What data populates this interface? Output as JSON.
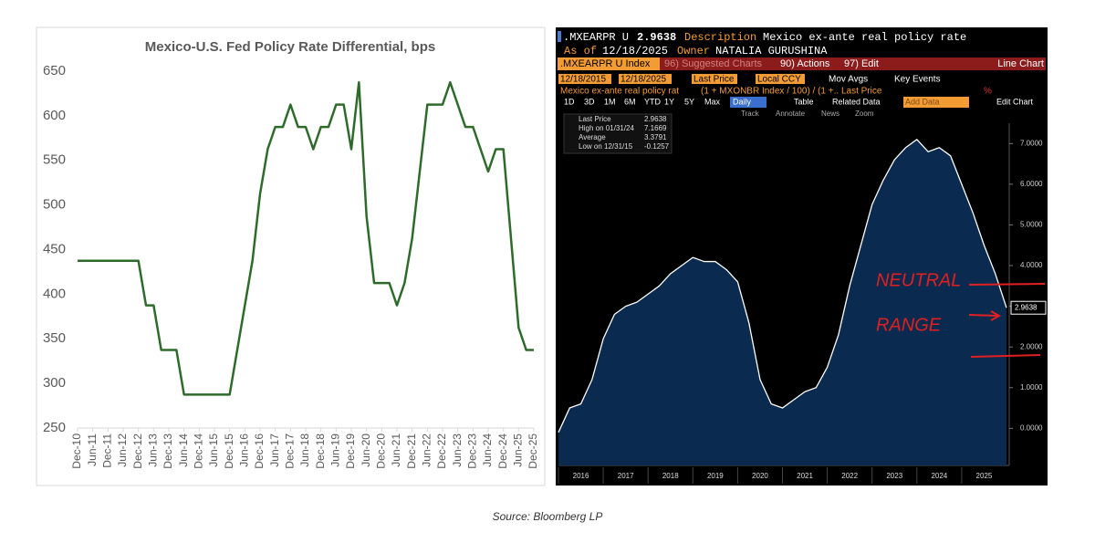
{
  "chart_data": [
    {
      "type": "line",
      "title": "Mexico-U.S. Fed Policy Rate Differential, bps",
      "categories": [
        "Dec-10",
        null,
        "Jun-11",
        null,
        "Dec-11",
        null,
        "Jun-12",
        null,
        "Dec-12",
        null,
        "Jun-13",
        null,
        "Dec-13",
        null,
        "Jun-14",
        null,
        "Dec-14",
        null,
        "Jun-15",
        null,
        "Dec-15",
        null,
        "Jun-16",
        null,
        "Dec-16",
        null,
        "Jun-17",
        null,
        "Dec-17",
        null,
        "Jun-18",
        null,
        "Dec-18",
        null,
        "Jun-19",
        null,
        "Dec-19",
        null,
        "Jun-20",
        null,
        "Dec-20",
        null,
        "Jun-21",
        null,
        "Dec-21",
        null,
        "Jun-22",
        null,
        "Dec-22",
        null,
        "Jun-23",
        null,
        "Dec-23",
        null,
        "Jun-24",
        null,
        "Dec-24",
        null,
        "Jun-25",
        null,
        "Dec-25"
      ],
      "series": [
        {
          "name": "Differential",
          "color": "#2e6b2a",
          "values": [
            437.5,
            437.5,
            437.5,
            437.5,
            437.5,
            437.5,
            437.5,
            437.5,
            437.5,
            387.5,
            387.5,
            337.5,
            337.5,
            337.5,
            287.5,
            287.5,
            287.5,
            287.5,
            287.5,
            287.5,
            287.5,
            337.5,
            387.5,
            437.5,
            512.5,
            562.5,
            587.5,
            587.5,
            612.5,
            587.5,
            587.5,
            562.5,
            587.5,
            587.5,
            612.5,
            612.5,
            562.5,
            637.5,
            487.5,
            412.5,
            412.5,
            412.5,
            387.5,
            412.5,
            462.5,
            537.5,
            612.5,
            612.5,
            612.5,
            637.5,
            612.5,
            587.5,
            587.5,
            562.5,
            537.5,
            562.5,
            562.5,
            462.5,
            362.5,
            337.5,
            337.5
          ]
        }
      ],
      "ylim": [
        250,
        650
      ],
      "yticks": [
        250,
        300,
        350,
        400,
        450,
        500,
        550,
        600,
        650
      ],
      "grid": false
    },
    {
      "type": "area",
      "categories": [
        null,
        null,
        "2016",
        null,
        null,
        null,
        "2017",
        null,
        null,
        null,
        "2018",
        null,
        null,
        null,
        "2019",
        null,
        null,
        null,
        "2020",
        null,
        null,
        null,
        "2021",
        null,
        null,
        null,
        "2022",
        null,
        null,
        null,
        "2023",
        null,
        null,
        null,
        "2024",
        null,
        null,
        null,
        "2025",
        null,
        null
      ],
      "series": [
        {
          "name": "Last Price",
          "color": "#ffffff",
          "values": [
            -0.1,
            0.5,
            0.6,
            1.2,
            2.2,
            2.8,
            3.0,
            3.1,
            3.3,
            3.5,
            3.8,
            4.0,
            4.2,
            4.1,
            4.1,
            3.9,
            3.6,
            2.6,
            1.2,
            0.6,
            0.5,
            0.7,
            0.9,
            1.0,
            1.5,
            2.3,
            3.5,
            4.5,
            5.5,
            6.1,
            6.6,
            6.9,
            7.1,
            6.8,
            6.9,
            6.7,
            6.0,
            5.3,
            4.5,
            3.8,
            2.9638
          ]
        }
      ],
      "fill": "#0b2a4f",
      "ylim": [
        -0.8,
        7.5
      ],
      "yticks": [
        {
          "value": 0,
          "label": "0.0000"
        },
        {
          "value": 1,
          "label": "1.0000"
        },
        {
          "value": 2,
          "label": "2.0000"
        },
        {
          "value": 3,
          "label": "3.0000"
        },
        {
          "value": 4,
          "label": "4.0000"
        },
        {
          "value": 5,
          "label": "5.0000"
        },
        {
          "value": 6,
          "label": "6.0000"
        },
        {
          "value": 7,
          "label": "7.0000"
        }
      ],
      "last_value": {
        "value": 2.9638,
        "label": "2.9638"
      },
      "annotations": [
        "NEUTRAL",
        "RANGE"
      ]
    }
  ],
  "terminal": {
    "ticker": ".MXEARPR U",
    "price": "2.9638",
    "description_label": "Description",
    "description": "Mexico ex-ante real policy rate",
    "as_of_label": "As of",
    "as_of": "12/18/2025",
    "owner_label": "Owner",
    "owner": "NATALIA GURUSHINA",
    "security": ".MXEARPR U Index",
    "menu": [
      "96) Suggested Charts",
      "90) Actions",
      "97) Edit"
    ],
    "chart_kind": "Line Chart",
    "start_date": "12/18/2015",
    "end_date": "12/18/2025",
    "field": "Last Price",
    "currency": "Local CCY",
    "options": [
      "Mov Avgs",
      "Key Events"
    ],
    "series_name": "Mexico ex-ante real policy rat",
    "formula": "(1 + MXONBR Index / 100) / (1 +.. Last Price",
    "unit": "%",
    "periods": [
      "1D",
      "3D",
      "1M",
      "6M",
      "YTD",
      "1Y",
      "5Y",
      "Max"
    ],
    "frequency": "Daily",
    "buttons": [
      "Table",
      "Related Data",
      "Add Data",
      "Edit Chart"
    ],
    "tools": [
      "Track",
      "Annotate",
      "News",
      "Zoom"
    ],
    "legend": [
      [
        "Last Price",
        "2.9638"
      ],
      [
        "High on 01/31/24",
        "7.1669"
      ],
      [
        "Average",
        "3.3791"
      ],
      [
        "Low on 12/31/15",
        "-0.1257"
      ]
    ]
  },
  "source": "Source: Bloomberg LP"
}
